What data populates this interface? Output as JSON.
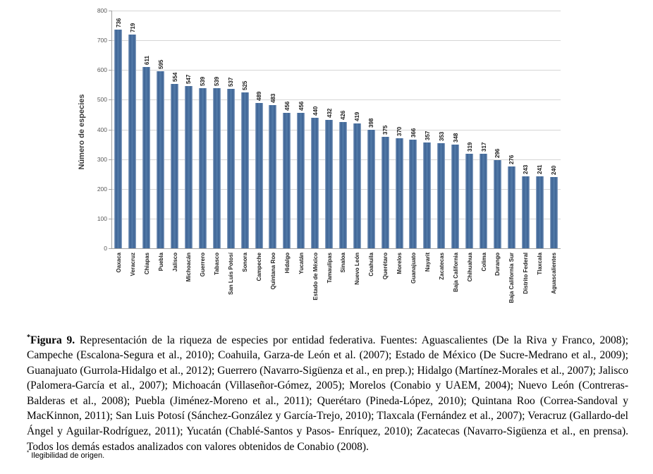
{
  "figure": {
    "caption_star": "*",
    "caption_label": "Figura 9.",
    "caption_text": "Representación de la riqueza de especies por entidad federativa. Fuentes: Aguascalientes (De la Riva y Franco, 2008); Campeche (Escalona-Segura et al., 2010); Coahuila, Garza-de León et al. (2007); Estado de México (De Sucre-Medrano et al., 2009); Guanajuato (Gurrola-Hidalgo et al., 2012); Guerrero (Navarro-Sigüenza et al., en prep.); Hidalgo (Martínez-Morales et al., 2007); Jalisco (Palomera-García et al., 2007); Michoacán (Villaseñor-Gómez, 2005); Morelos (Conabio y UAEM, 2004); Nuevo León (Contreras-Balderas et al., 2008); Puebla (Jiménez-Moreno et al., 2011); Querétaro (Pineda-López, 2010); Quintana Roo (Correa-Sandoval y MacKinnon, 2011); San Luis Potosí (Sánchez-González y García-Trejo, 2010); Tlaxcala (Fernández et al., 2007); Veracruz (Gallardo-del Ángel y Aguilar-Rodríguez, 2011); Yucatán (Chablé-Santos y Pasos- Enríquez, 2010); Zacatecas (Navarro-Sigüenza et al., en prensa). Todos los demás estados analizados con valores obtenidos de Conabio (2008).",
    "footnote_star": "*",
    "footnote_text": "Ilegibilidad de origen."
  },
  "chart_data": {
    "type": "bar",
    "title": "",
    "xlabel": "",
    "ylabel": "Número de especies",
    "ylim": [
      0,
      800
    ],
    "ytick_step": 100,
    "grid": true,
    "legend": false,
    "bar_color": "#3d6394",
    "gridline_color": "#d6d6d6",
    "categories": [
      "Oaxaca",
      "Veracruz",
      "Chiapas",
      "Puebla",
      "Jalisco",
      "Michoacán",
      "Guerrero",
      "Tabasco",
      "San Luis Potosí",
      "Sonora",
      "Campeche",
      "Quintana Roo",
      "Hidalgo",
      "Yucatán",
      "Estado de México",
      "Tamaulipas",
      "Sinaloa",
      "Nuevo León",
      "Coahuila",
      "Querétaro",
      "Morelos",
      "Guanajuato",
      "Nayarit",
      "Zacatecas",
      "Baja California",
      "Chihuahua",
      "Colima",
      "Durango",
      "Baja California Sur",
      "Distrito Federal",
      "Tlaxcala",
      "Aguascalientes"
    ],
    "values": [
      736,
      719,
      611,
      595,
      554,
      547,
      539,
      539,
      537,
      525,
      489,
      483,
      456,
      456,
      440,
      432,
      426,
      419,
      398,
      375,
      370,
      366,
      357,
      353,
      348,
      319,
      317,
      296,
      276,
      243,
      241,
      240
    ]
  }
}
